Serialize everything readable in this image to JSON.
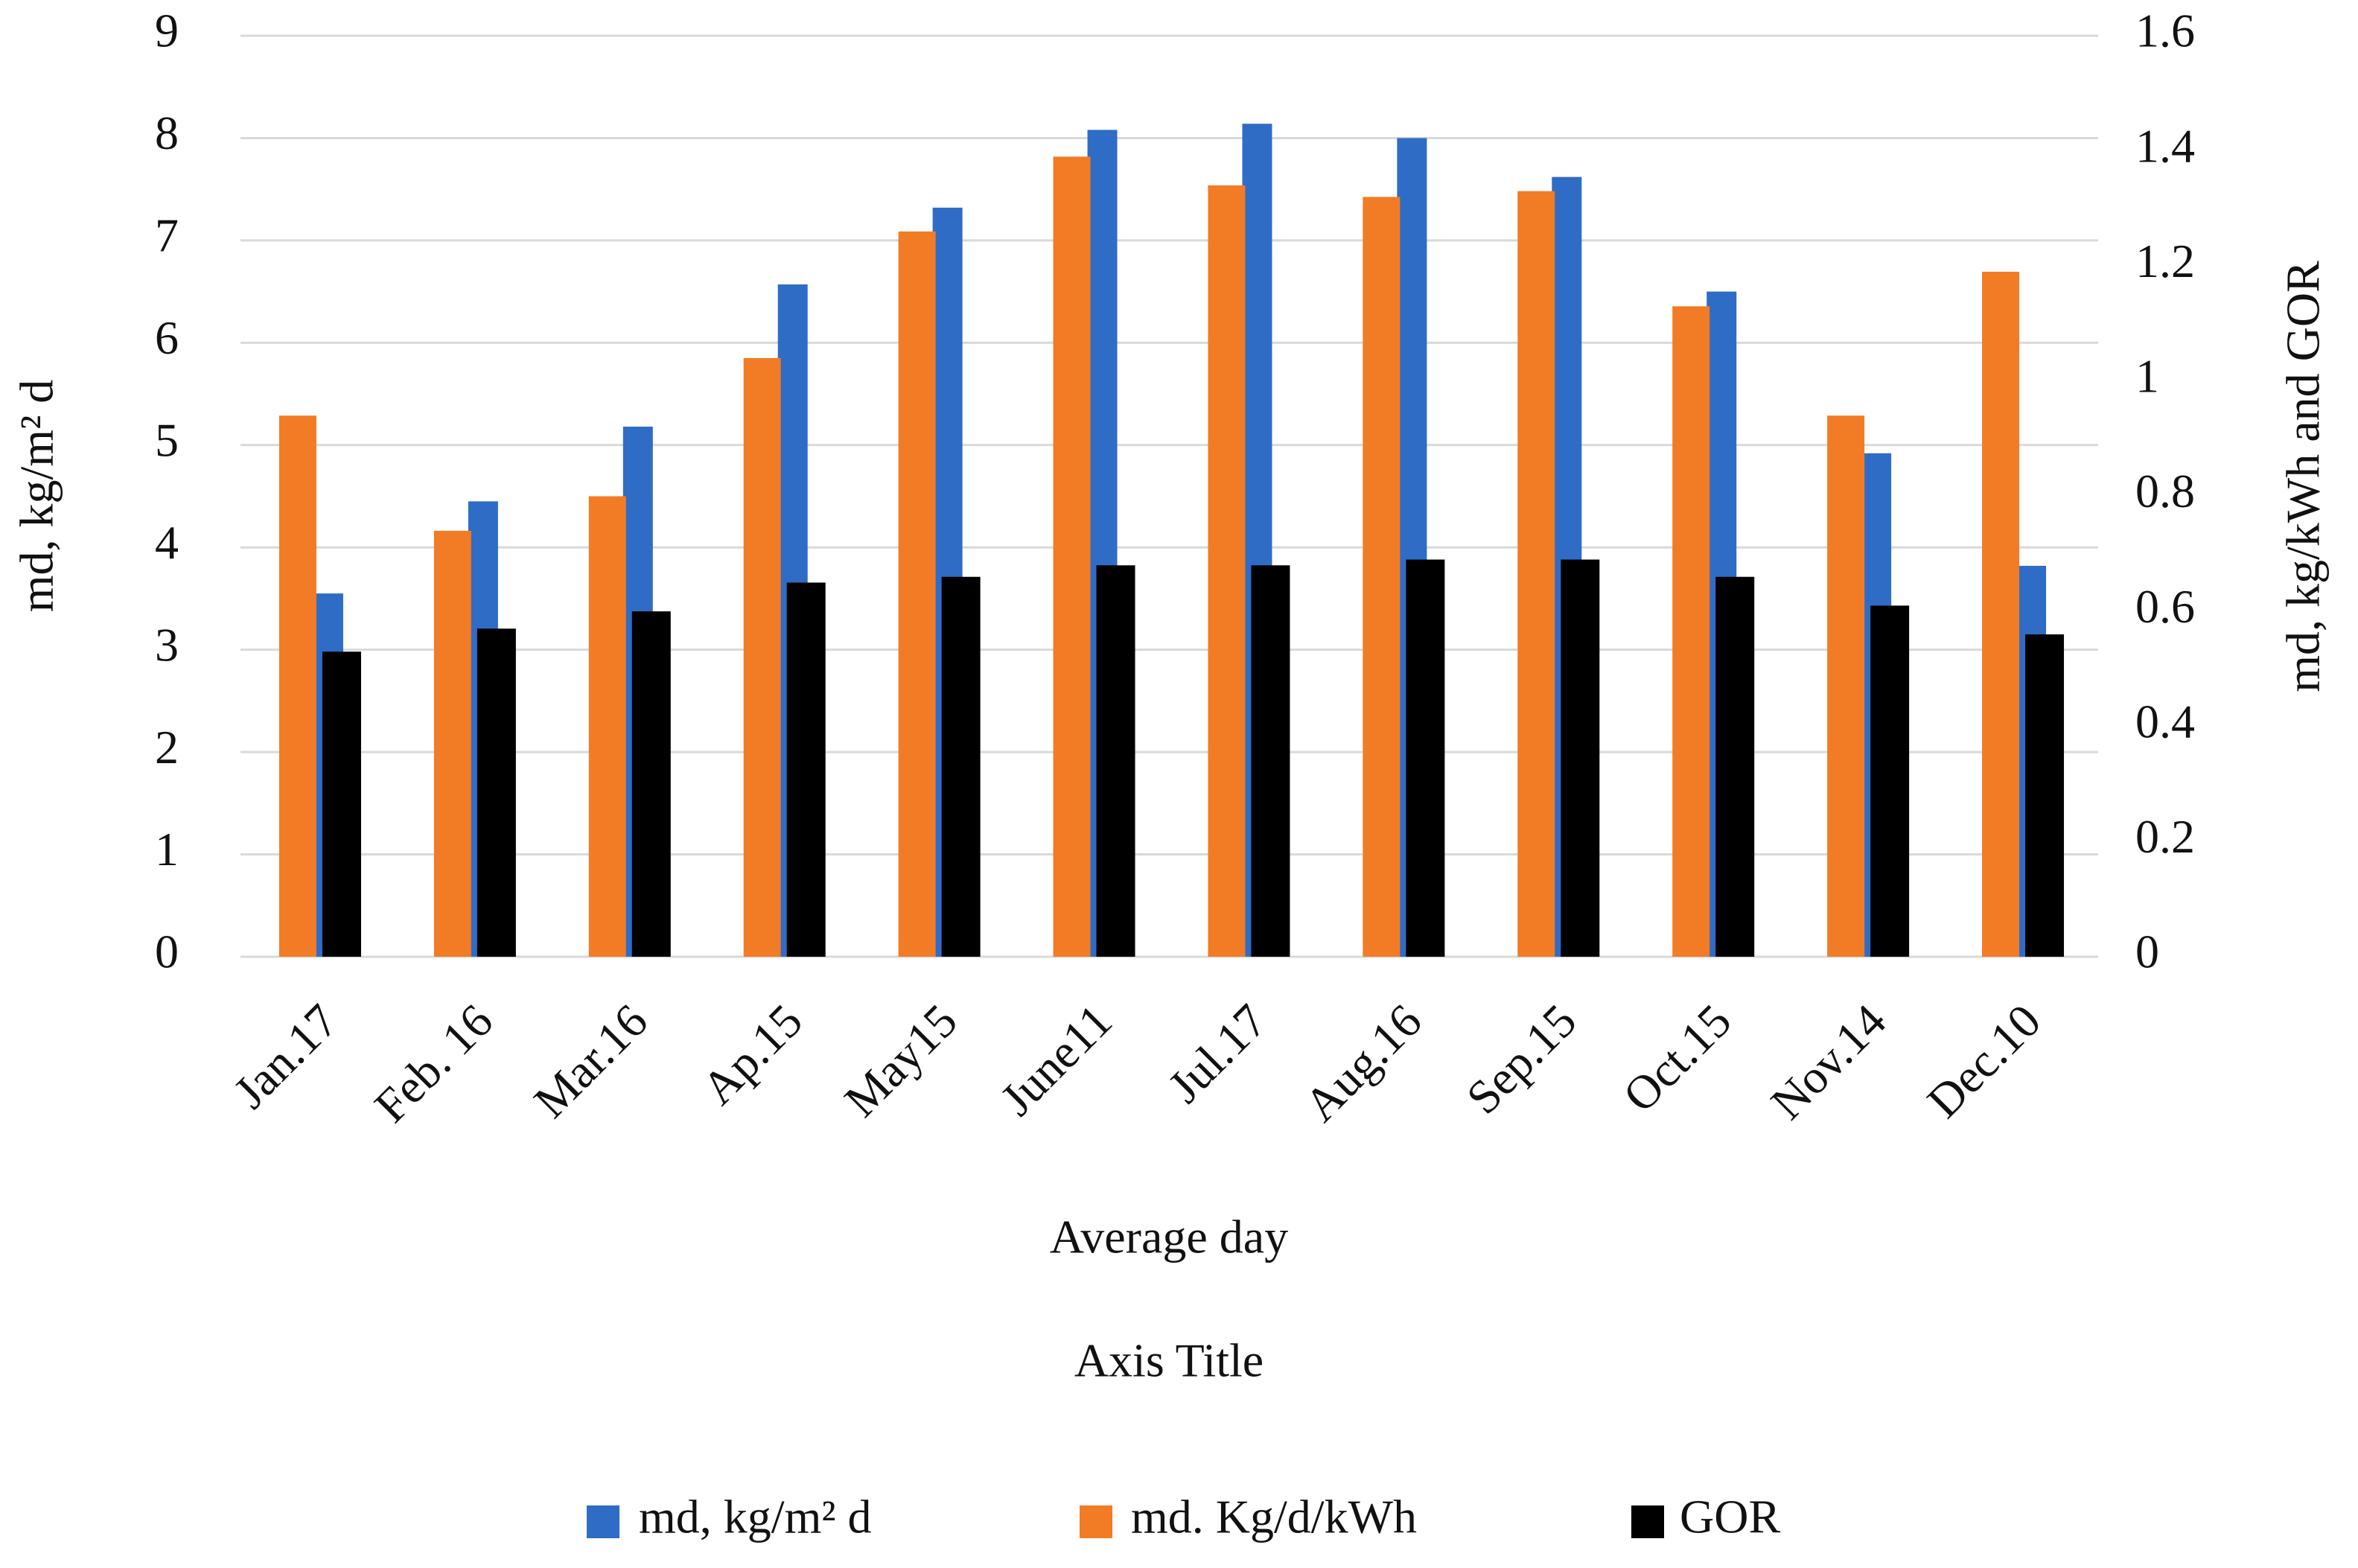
{
  "chart_data": {
    "type": "bar",
    "ylabel": "md, kg/m² d",
    "y2label": "md, kg/kWh and GOR",
    "xlabel": "Average day",
    "annotation": "Axis Title",
    "categories": [
      "Jan.17",
      "Feb. 16",
      "Mar.16",
      "Ap.15",
      "May15",
      "June11",
      "Jul.17",
      "Aug.16",
      "Sep.15",
      "Oct.15",
      "Nov.14",
      "Dec.10"
    ],
    "series": [
      {
        "name": "md, kg/m² d",
        "color": "#2f6cc6",
        "axis": "y",
        "values": [
          3.55,
          4.45,
          5.18,
          6.57,
          7.32,
          8.08,
          8.14,
          8.0,
          7.62,
          6.5,
          4.92,
          3.82
        ]
      },
      {
        "name": "md. Kg/d/kWh",
        "color": "#f27b25",
        "axis": "y2",
        "values": [
          0.94,
          0.74,
          0.8,
          1.04,
          1.26,
          1.39,
          1.34,
          1.32,
          1.33,
          1.13,
          0.94,
          1.19
        ]
      },
      {
        "name": "GOR",
        "color": "#000000",
        "axis": "y2",
        "values": [
          0.53,
          0.57,
          0.6,
          0.65,
          0.66,
          0.68,
          0.68,
          0.69,
          0.69,
          0.66,
          0.61,
          0.56
        ]
      }
    ],
    "ylim": [
      0,
      9
    ],
    "yticks": [
      0,
      1,
      2,
      3,
      4,
      5,
      6,
      7,
      8,
      9
    ],
    "y2lim": [
      0,
      1.6
    ],
    "y2ticks": [
      0,
      0.2,
      0.4,
      0.6,
      0.8,
      1,
      1.2,
      1.4,
      1.6
    ],
    "grid": true,
    "legend": "bottom"
  }
}
